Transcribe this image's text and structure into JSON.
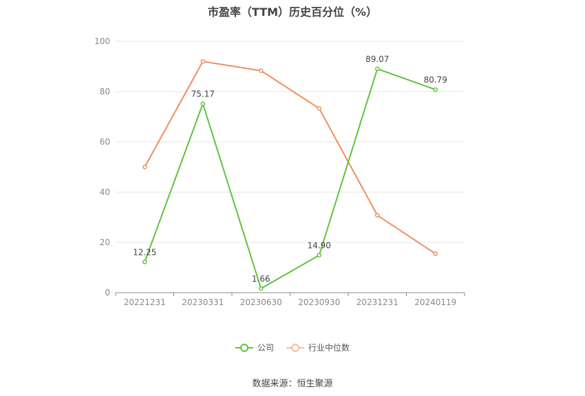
{
  "source_label": "数据来源：恒生聚源",
  "chart_data": {
    "type": "line",
    "title": "市盈率（TTM）历史百分位（%）",
    "categories": [
      "20221231",
      "20230331",
      "20230630",
      "20230930",
      "20231231",
      "20240119"
    ],
    "ylim": [
      0,
      100
    ],
    "yticks": [
      0,
      20,
      40,
      60,
      80,
      100
    ],
    "grid": true,
    "legend_position": "bottom-center",
    "series": [
      {
        "name": "公司",
        "color": "#5cc43a",
        "values": [
          12.25,
          75.17,
          1.66,
          14.9,
          89.07,
          80.79
        ],
        "labels": [
          "12.25",
          "75.17",
          "1.66",
          "14.90",
          "89.07",
          "80.79"
        ]
      },
      {
        "name": "行业中位数",
        "color": "#f28c5c",
        "values": [
          50,
          92,
          88.3,
          73.3,
          30.8,
          15.5
        ]
      }
    ]
  }
}
